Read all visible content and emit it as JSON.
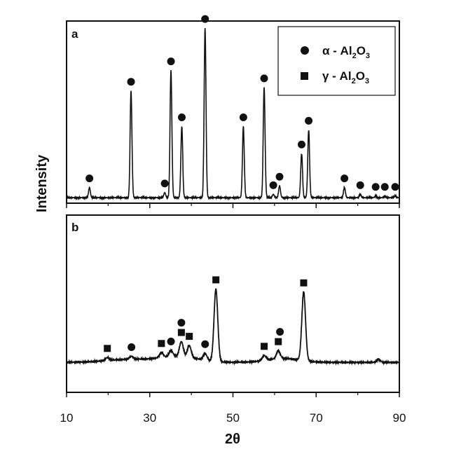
{
  "chart_data": {
    "type": "line",
    "xlabel": "2θ",
    "ylabel": "Intensity",
    "xlim": [
      10,
      90
    ],
    "xticks": [
      10,
      30,
      50,
      70,
      90
    ],
    "y_tick_labels_shown": false,
    "legend": {
      "placement": "top-right",
      "entries": [
        {
          "marker": "circle",
          "label_main": "α - Al",
          "sub1": "2",
          "mid": "O",
          "sub2": "3"
        },
        {
          "marker": "square",
          "label_main": "γ - Al",
          "sub1": "2",
          "mid": "O",
          "sub2": "3"
        }
      ]
    },
    "panels": [
      {
        "label": "a",
        "ylim": [
          0,
          100
        ],
        "baseline": 2,
        "peaks": [
          {
            "x": 15.5,
            "y": 6,
            "marker": "circle"
          },
          {
            "x": 25.5,
            "y": 63,
            "marker": "circle"
          },
          {
            "x": 33.6,
            "y": 3,
            "marker": "circle"
          },
          {
            "x": 35.1,
            "y": 75,
            "marker": "circle"
          },
          {
            "x": 37.7,
            "y": 42,
            "marker": "circle"
          },
          {
            "x": 43.3,
            "y": 100,
            "marker": "circle"
          },
          {
            "x": 52.5,
            "y": 42,
            "marker": "circle"
          },
          {
            "x": 57.5,
            "y": 65,
            "marker": "circle"
          },
          {
            "x": 59.7,
            "y": 2,
            "marker": "circle"
          },
          {
            "x": 61.2,
            "y": 7,
            "marker": "circle"
          },
          {
            "x": 66.5,
            "y": 26,
            "marker": "circle"
          },
          {
            "x": 68.2,
            "y": 40,
            "marker": "circle"
          },
          {
            "x": 76.8,
            "y": 6,
            "marker": "circle"
          },
          {
            "x": 80.6,
            "y": 2,
            "marker": "circle"
          },
          {
            "x": 84.3,
            "y": 1,
            "marker": "circle"
          },
          {
            "x": 86.5,
            "y": 1,
            "marker": "circle"
          },
          {
            "x": 89.0,
            "y": 1,
            "marker": "circle"
          }
        ]
      },
      {
        "label": "b",
        "ylim": [
          0,
          100
        ],
        "baseline": 22,
        "peaks": [
          {
            "x": 19.8,
            "y": 3,
            "marker": "square"
          },
          {
            "x": 25.6,
            "y": 3,
            "marker": "circle"
          },
          {
            "x": 32.8,
            "y": 5,
            "marker": "square"
          },
          {
            "x": 35.1,
            "y": 6,
            "marker": "circle"
          },
          {
            "x": 37.6,
            "y": 15,
            "marker": "square"
          },
          {
            "x": 37.6,
            "y": 20,
            "marker": "circle"
          },
          {
            "x": 39.5,
            "y": 12,
            "marker": "square"
          },
          {
            "x": 43.3,
            "y": 7,
            "marker": "circle"
          },
          {
            "x": 45.9,
            "y": 74,
            "marker": "square"
          },
          {
            "x": 57.5,
            "y": 5,
            "marker": "square"
          },
          {
            "x": 60.9,
            "y": 8,
            "marker": "square"
          },
          {
            "x": 61.3,
            "y": 12,
            "marker": "circle"
          },
          {
            "x": 67.0,
            "y": 70,
            "marker": "square"
          },
          {
            "x": 85.0,
            "y": 3,
            "marker": "none"
          }
        ]
      }
    ]
  }
}
